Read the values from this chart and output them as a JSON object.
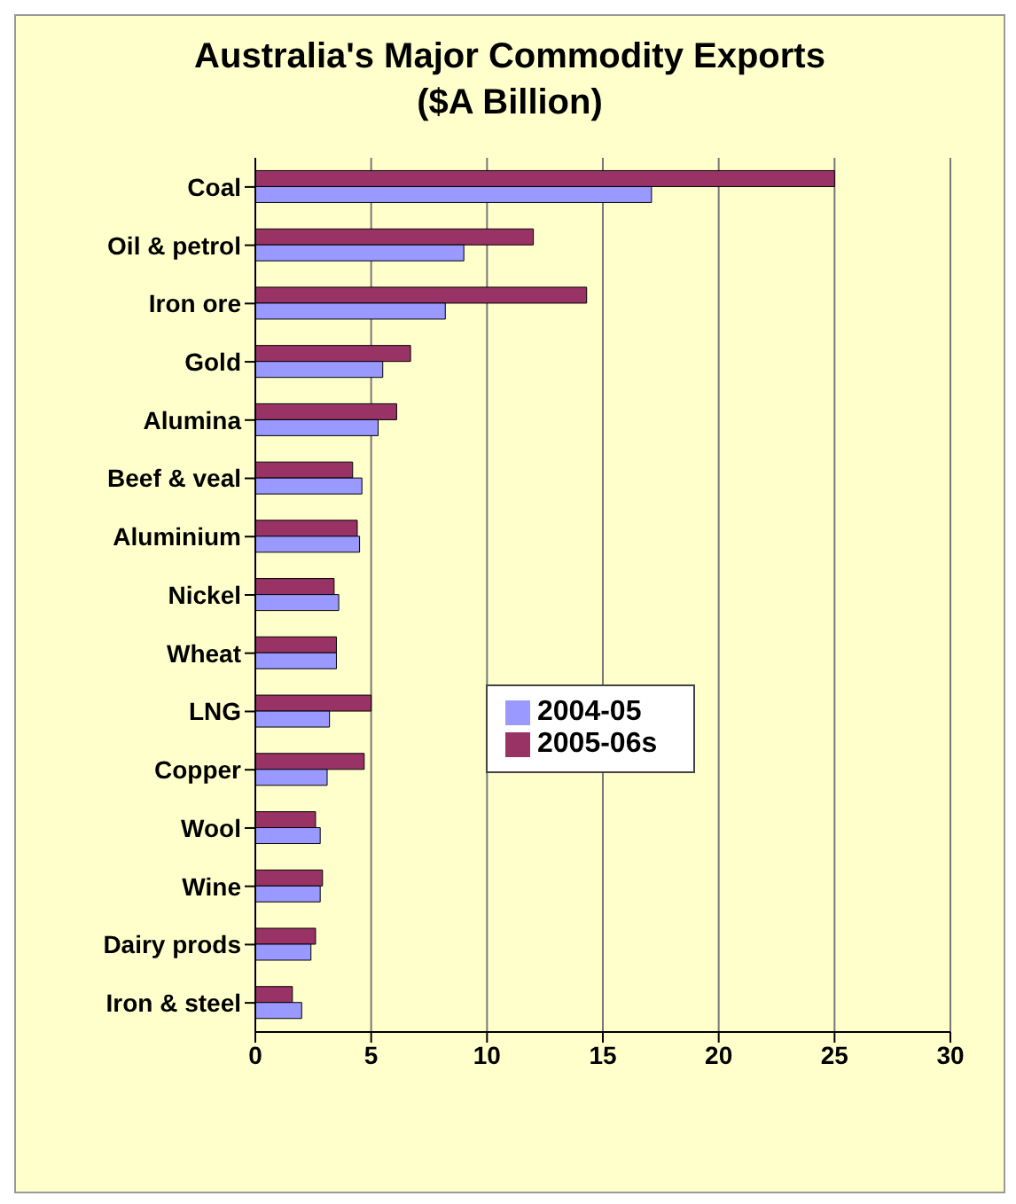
{
  "chart_data": {
    "type": "bar",
    "orientation": "horizontal",
    "title": "Australia's Major Commodity Exports\n($A Billion)",
    "categories": [
      "Coal",
      "Oil & petrol",
      "Iron ore",
      "Gold",
      "Alumina",
      "Beef & veal",
      "Aluminium",
      "Nickel",
      "Wheat",
      "LNG",
      "Copper",
      "Wool",
      "Wine",
      "Dairy prods",
      "Iron & steel"
    ],
    "series": [
      {
        "name": "2005-06s",
        "color": "#993366",
        "values": [
          25,
          12,
          14.3,
          6.7,
          6.1,
          4.2,
          4.4,
          3.4,
          3.5,
          5.0,
          4.7,
          2.6,
          2.9,
          2.6,
          1.6
        ]
      },
      {
        "name": "2004-05",
        "color": "#9999ff",
        "values": [
          17.1,
          9.0,
          8.2,
          5.5,
          5.3,
          4.6,
          4.5,
          3.6,
          3.5,
          3.2,
          3.1,
          2.8,
          2.8,
          2.4,
          2.0
        ]
      }
    ],
    "xlim": [
      0,
      30
    ],
    "xticks": [
      0,
      5,
      10,
      15,
      20,
      25,
      30
    ],
    "grid": "x",
    "legend": "right"
  }
}
